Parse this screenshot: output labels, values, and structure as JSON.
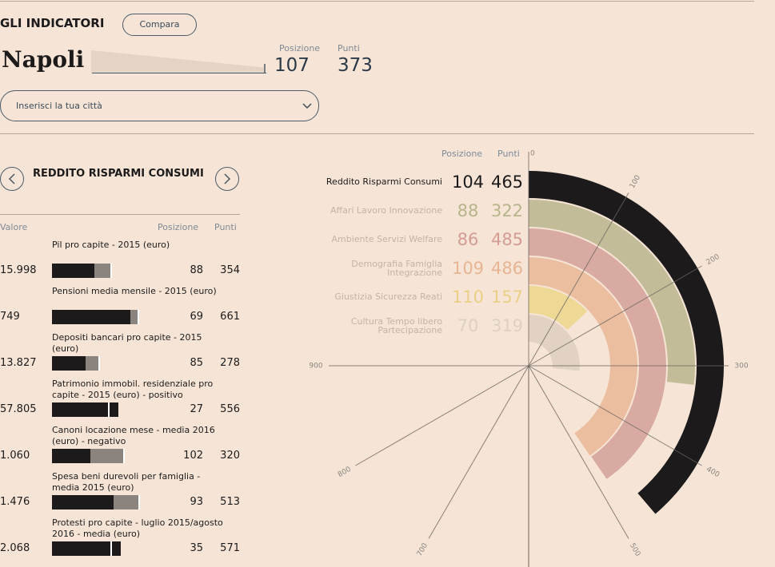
{
  "header": {
    "title": "GLI INDICATORI",
    "compare_button": "Compara",
    "city": "Napoli",
    "position_label": "Posizione",
    "points_label": "Punti",
    "position": 107,
    "points": 373,
    "city_select_placeholder": "Inserisci la tua città"
  },
  "section": {
    "title": "REDDITO RISPARMI CONSUMI",
    "columns": [
      "Valore",
      "Posizione",
      "Punti"
    ],
    "rows": [
      {
        "label": "Pil pro capite - 2015 (euro)",
        "value": "15.998",
        "position": 88,
        "points": 354,
        "bar": {
          "city": 48,
          "reference": 66
        }
      },
      {
        "label": "Pensioni media mensile - 2015 (euro)",
        "value": "749",
        "position": 69,
        "points": 661,
        "bar": {
          "city": 89,
          "reference": 97
        }
      },
      {
        "label": "Depositi bancari pro capite - 2015 (euro)",
        "value": "13.827",
        "position": 85,
        "points": 278,
        "bar": {
          "city": 38,
          "reference": 53
        }
      },
      {
        "label": "Patrimonio immobil. residenziale pro capite - 2015 (euro) - positivo",
        "value": "57.805",
        "position": 27,
        "points": 556,
        "bar": {
          "city": 75,
          "reference": 64
        }
      },
      {
        "label": "Canoni locazione mese - media 2016 (euro) - negativo",
        "value": "1.060",
        "position": 102,
        "points": 320,
        "bar": {
          "city": 44,
          "reference": 81
        }
      },
      {
        "label": "Spesa beni durevoli per famiglia - media 2015 (euro)",
        "value": "1.476",
        "position": 93,
        "points": 513,
        "bar": {
          "city": 70,
          "reference": 98
        }
      },
      {
        "label": "Protesti pro capite - luglio 2015/agosto 2016 - media (euro)",
        "value": "2.068",
        "position": 35,
        "points": 571,
        "bar": {
          "city": 78,
          "reference": 66
        }
      }
    ]
  },
  "chart_data": {
    "type": "radial_bar",
    "column_labels": [
      "Posizione",
      "Punti"
    ],
    "anglelim": [
      0,
      1200
    ],
    "ticks": [
      0,
      100,
      200,
      300,
      400,
      500,
      700,
      800,
      900
    ],
    "series": [
      {
        "name": "Reddito Risparmi Consumi",
        "position": 104,
        "value": 465,
        "color": "#1c1a1b",
        "text_color": "#1c1a1b"
      },
      {
        "name": "Affari Lavoro Innovazione",
        "position": 88,
        "value": 322,
        "color": "#c2bd98",
        "text_color": "#b7b48a"
      },
      {
        "name": "Ambiente Servizi Welfare",
        "position": 86,
        "value": 485,
        "color": "#d9aaa1",
        "text_color": "#d59c93"
      },
      {
        "name": "Demografia Famiglia Integrazione",
        "position": 109,
        "value": 486,
        "color": "#ecbea0",
        "text_color": "#e8b592"
      },
      {
        "name": "Giustizia Sicurezza Reati",
        "position": 110,
        "value": 157,
        "color": "#eed896",
        "text_color": "#ead085"
      },
      {
        "name": "Cultura Tempo libero Partecipazione",
        "position": 70,
        "value": 319,
        "color": "#e2d2c3",
        "text_color": "#ddd0c4"
      }
    ]
  }
}
